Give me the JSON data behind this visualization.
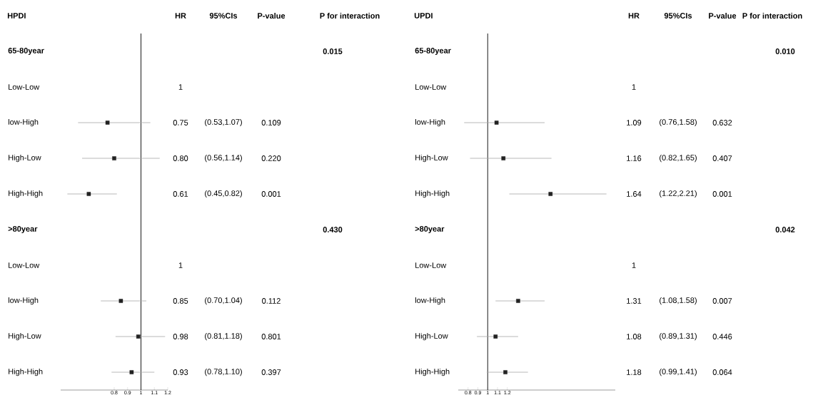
{
  "chart_data": [
    {
      "type": "scatter",
      "orientation": "horizontal",
      "title": "HPDI",
      "categories": [
        "65-80year",
        "Low-Low",
        "low-High",
        "High-Low",
        "High-High",
        ">80year",
        "Low-Low",
        "low-High",
        "High-Low",
        "High-High"
      ],
      "values": [
        null,
        null,
        0.75,
        0.8,
        0.61,
        null,
        null,
        0.85,
        0.98,
        0.93
      ],
      "errors": [
        null,
        null,
        [
          0.53,
          1.07
        ],
        [
          0.56,
          1.14
        ],
        [
          0.45,
          0.82
        ],
        null,
        null,
        [
          0.7,
          1.04
        ],
        [
          0.81,
          1.18
        ],
        [
          0.78,
          1.1
        ]
      ],
      "value_labels": [
        null,
        "1",
        "0.75",
        "0.80",
        "0.61",
        null,
        "1",
        "0.85",
        "0.98",
        "0.93"
      ],
      "annotations": [
        "HR",
        "95%CIs",
        "P-value",
        "P for interaction",
        "0.015",
        "(0.53,1.07)",
        "0.109",
        "(0.56,1.14)",
        "0.220",
        "(0.45,0.82)",
        "0.001",
        "0.430",
        "(0.70,1.04)",
        "0.112",
        "(0.81,1.18)",
        "0.801",
        "(0.78,1.10)",
        "0.397"
      ],
      "xlim": [
        0.4,
        1.2
      ],
      "xticks": [
        0.8,
        0.9,
        1,
        1.1,
        1.2
      ],
      "ref_lines": [
        {
          "axis": "x",
          "value": 1
        }
      ],
      "marker": "square",
      "color": "#222222"
    },
    {
      "type": "scatter",
      "orientation": "horizontal",
      "title": "UPDI",
      "categories": [
        "65-80year",
        "Low-Low",
        "low-High",
        "High-Low",
        "High-High",
        ">80year",
        "Low-Low",
        "low-High",
        "High-Low",
        "High-High"
      ],
      "values": [
        null,
        null,
        1.09,
        1.16,
        1.64,
        null,
        null,
        1.31,
        1.08,
        1.18
      ],
      "errors": [
        null,
        null,
        [
          0.76,
          1.58
        ],
        [
          0.82,
          1.65
        ],
        [
          1.22,
          2.21
        ],
        null,
        null,
        [
          1.08,
          1.58
        ],
        [
          0.89,
          1.31
        ],
        [
          0.99,
          1.41
        ]
      ],
      "value_labels": [
        null,
        "1",
        "1.09",
        "1.16",
        "1.64",
        null,
        "1",
        "1.31",
        "1.08",
        "1.18"
      ],
      "annotations": [
        "HR",
        "95%CIs",
        "P-value",
        "P for interaction",
        "0.010",
        "(0.76,1.58)",
        "0.632",
        "(0.82,1.65)",
        "0.407",
        "(1.22,2.21)",
        "0.001",
        "0.042",
        "(1.08,1.58)",
        "0.007",
        "(0.89,1.31)",
        "0.446",
        "(0.99,1.41)",
        "0.064"
      ],
      "xlim": [
        0.7,
        2.3
      ],
      "xticks": [
        0.8,
        0.9,
        1,
        1.1,
        1.2
      ],
      "ref_lines": [
        {
          "axis": "x",
          "value": 1
        }
      ],
      "marker": "square",
      "color": "#222222"
    }
  ]
}
